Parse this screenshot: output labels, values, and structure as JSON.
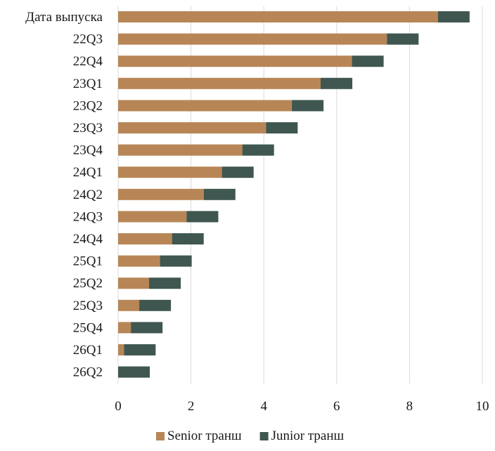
{
  "chart_data": {
    "type": "bar",
    "orientation": "horizontal",
    "stacked": true,
    "categories": [
      "Дата выпуска",
      "22Q3",
      "22Q4",
      "23Q1",
      "23Q2",
      "23Q3",
      "23Q4",
      "24Q1",
      "24Q2",
      "24Q3",
      "24Q4",
      "25Q1",
      "25Q2",
      "25Q3",
      "25Q4",
      "26Q1",
      "26Q2"
    ],
    "series": [
      {
        "name": "Senior транш",
        "color": "#b88656",
        "values": [
          8.78,
          7.38,
          6.42,
          5.56,
          4.77,
          4.06,
          3.41,
          2.85,
          2.35,
          1.88,
          1.48,
          1.15,
          0.85,
          0.58,
          0.35,
          0.16,
          0.0
        ]
      },
      {
        "name": "Junior транш",
        "color": "#3f5750",
        "values": [
          0.87,
          0.87,
          0.87,
          0.87,
          0.87,
          0.87,
          0.87,
          0.87,
          0.87,
          0.87,
          0.87,
          0.87,
          0.87,
          0.87,
          0.87,
          0.87,
          0.87
        ]
      }
    ],
    "xlim": [
      0,
      10
    ],
    "xticks": [
      0,
      2,
      4,
      6,
      8,
      10
    ],
    "xtick_labels": [
      "0",
      "2",
      "4",
      "6",
      "8",
      "10"
    ],
    "grid": "vertical",
    "gridline_color": "#d9d9d9",
    "legend_position": "bottom-center",
    "title": "",
    "xlabel": "",
    "ylabel": ""
  }
}
